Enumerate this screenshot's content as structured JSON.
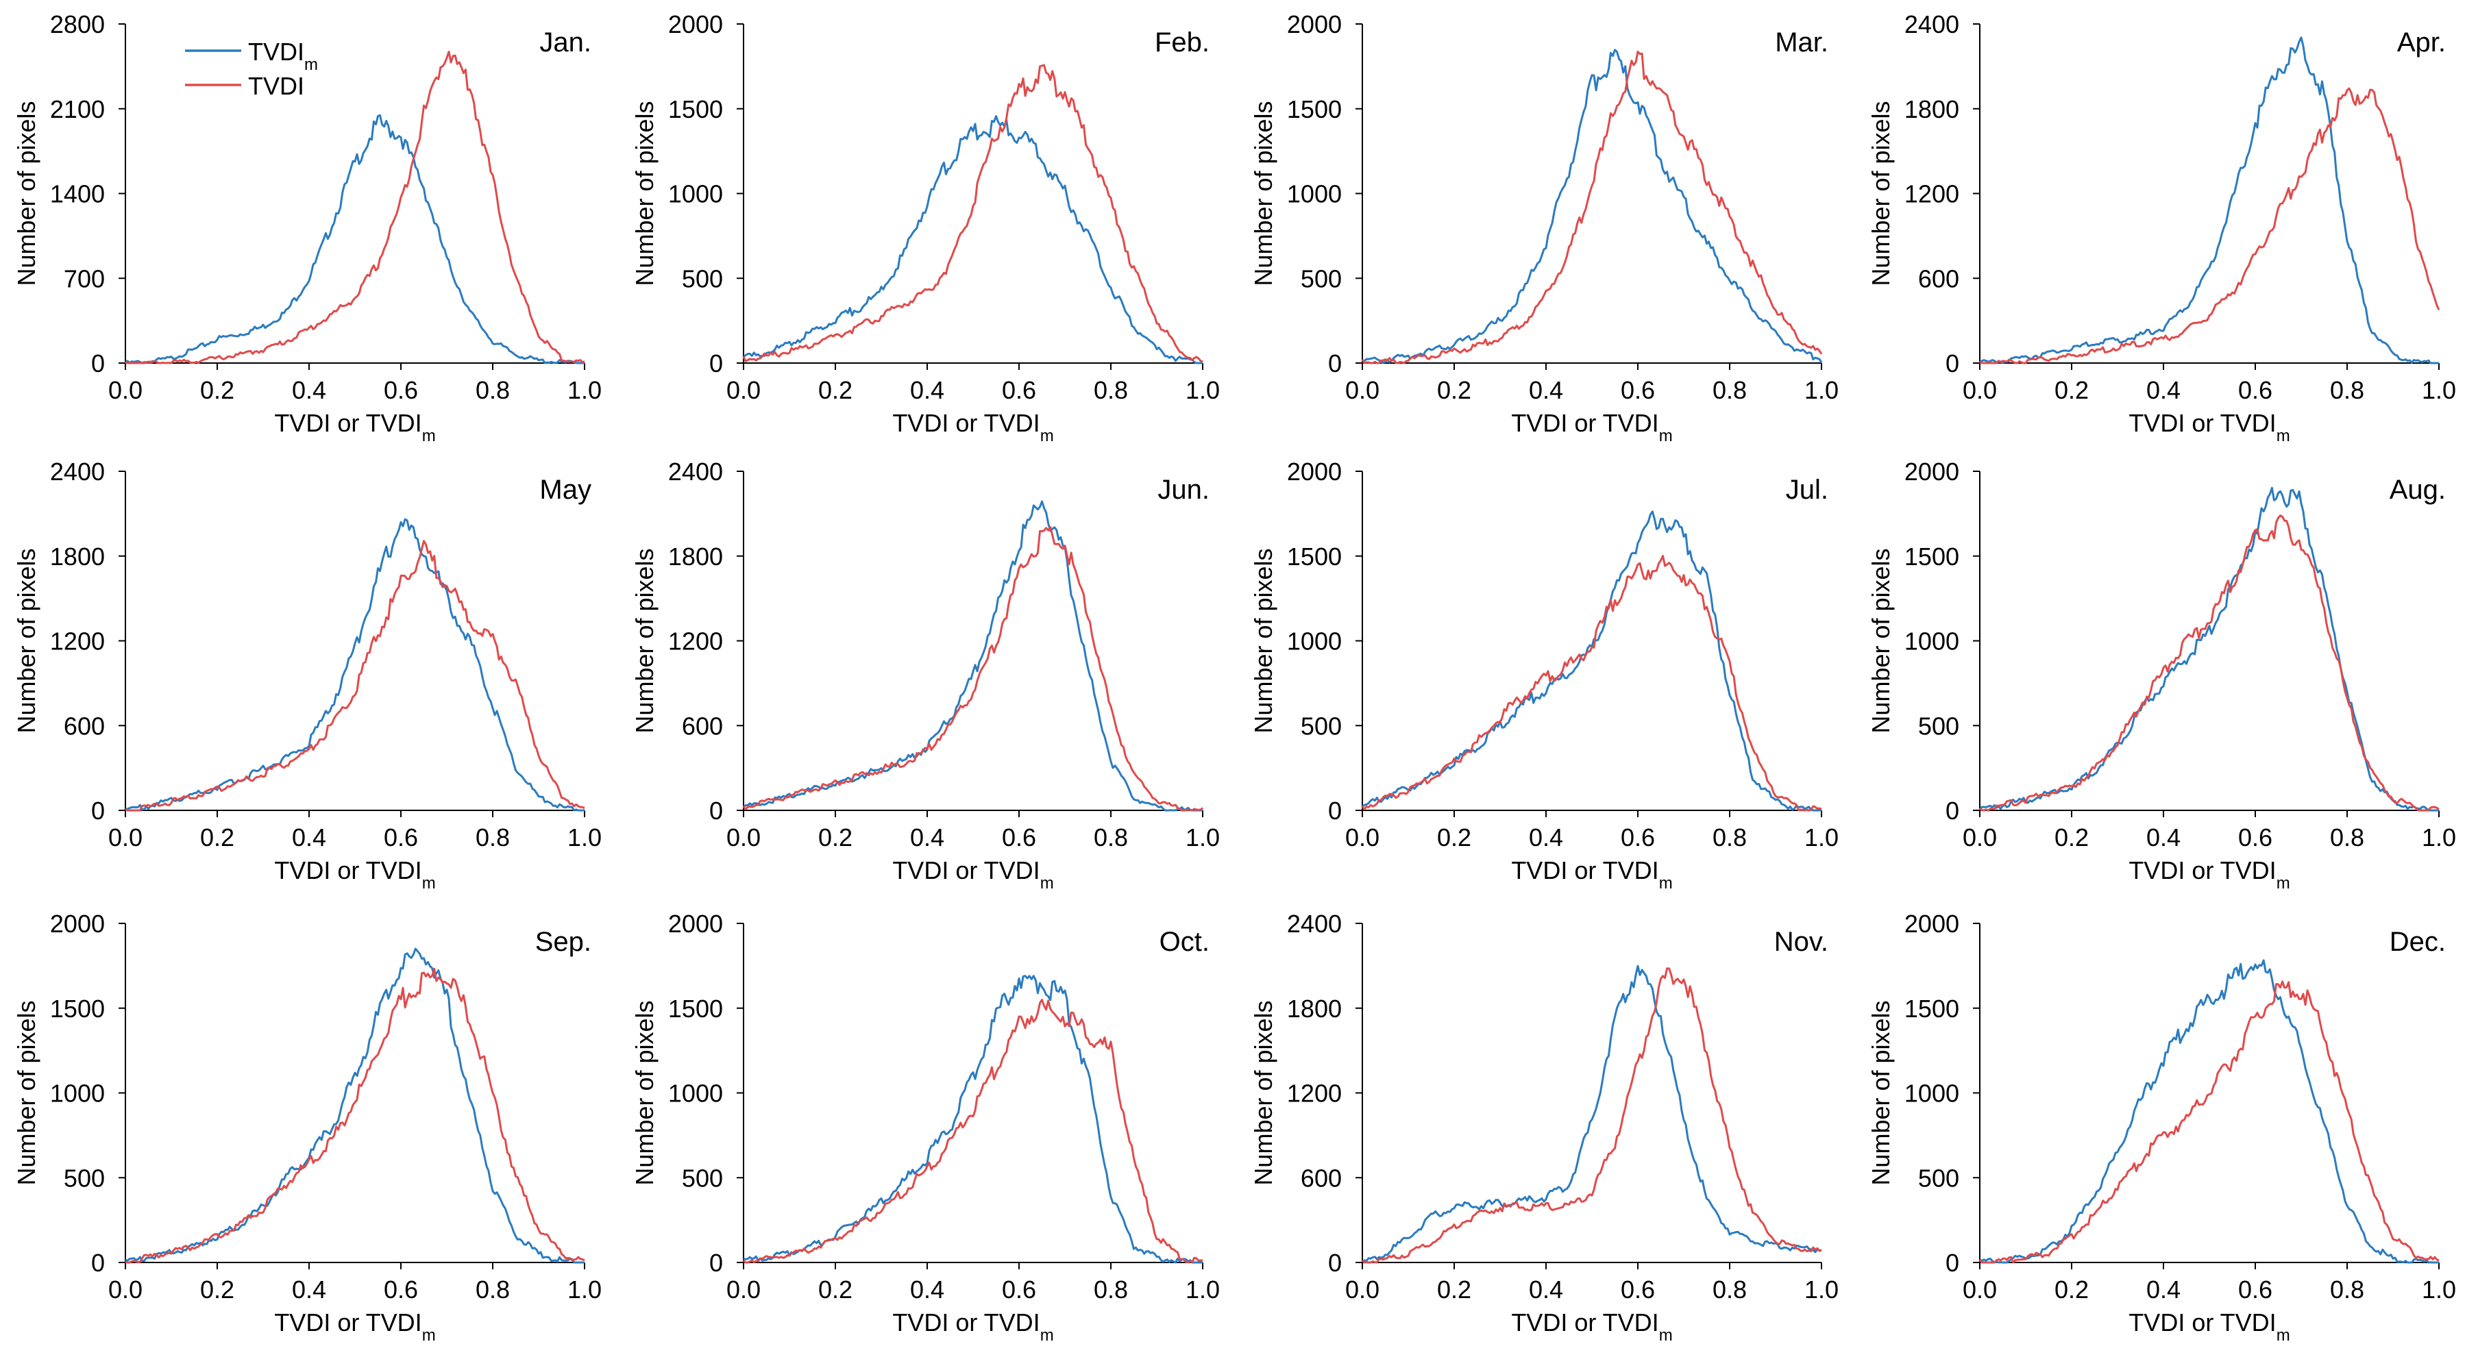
{
  "figure": {
    "legend": {
      "entries": [
        {
          "label": "TVDI",
          "subscript": "m",
          "color": "#2b7cc0"
        },
        {
          "label": "TVDI",
          "subscript": "",
          "color": "#e04b4b"
        }
      ],
      "placement": "top-left of first panel"
    },
    "common": {
      "xlabel": "TVDI or TVDI",
      "xlabel_subscript": "m",
      "ylabel": "Number of pixels",
      "xlim": [
        0,
        1
      ],
      "x_ticks": [
        "0.0",
        "0.2",
        "0.4",
        "0.6",
        "0.8",
        "1.0"
      ],
      "grid": false
    }
  },
  "chart_data": [
    {
      "type": "line",
      "title": "Jan.",
      "xlabel": "TVDI or TVDIm",
      "ylabel": "Number of pixels",
      "ylim": [
        0,
        2800
      ],
      "y_ticks": [
        "0",
        "700",
        "1400",
        "2100",
        "2800"
      ],
      "x": [
        0.0,
        0.05,
        0.1,
        0.15,
        0.2,
        0.25,
        0.3,
        0.35,
        0.4,
        0.45,
        0.5,
        0.55,
        0.6,
        0.65,
        0.7,
        0.75,
        0.8,
        0.85,
        0.9,
        0.95,
        1.0
      ],
      "series": [
        {
          "name": "TVDIm",
          "values": [
            0,
            10,
            40,
            110,
            200,
            240,
            300,
            420,
            700,
            1150,
            1650,
            1980,
            1880,
            1450,
            850,
            420,
            180,
            70,
            20,
            5,
            0
          ]
        },
        {
          "name": "TVDI",
          "values": [
            0,
            0,
            5,
            15,
            40,
            70,
            110,
            180,
            280,
            400,
            540,
            820,
            1320,
            2050,
            2600,
            2300,
            1500,
            700,
            230,
            40,
            0
          ]
        }
      ]
    },
    {
      "type": "line",
      "title": "Feb.",
      "xlabel": "TVDI or TVDIm",
      "ylabel": "Number of pixels",
      "ylim": [
        0,
        2000
      ],
      "y_ticks": [
        "0",
        "500",
        "1000",
        "1500",
        "2000"
      ],
      "x": [
        0.0,
        0.05,
        0.1,
        0.15,
        0.2,
        0.25,
        0.3,
        0.35,
        0.4,
        0.45,
        0.5,
        0.55,
        0.6,
        0.65,
        0.7,
        0.75,
        0.8,
        0.85,
        0.9,
        0.95,
        1.0
      ],
      "series": [
        {
          "name": "TVDIm",
          "values": [
            30,
            60,
            110,
            180,
            260,
            320,
            420,
            650,
            950,
            1200,
            1350,
            1400,
            1350,
            1200,
            1000,
            750,
            450,
            220,
            80,
            20,
            0
          ]
        },
        {
          "name": "TVDI",
          "values": [
            20,
            40,
            70,
            110,
            160,
            210,
            280,
            350,
            420,
            580,
            950,
            1350,
            1600,
            1700,
            1600,
            1300,
            950,
            550,
            250,
            70,
            0
          ]
        }
      ]
    },
    {
      "type": "line",
      "title": "Mar.",
      "xlabel": "TVDI or TVDIm",
      "ylabel": "Number of pixels",
      "ylim": [
        0,
        2000
      ],
      "y_ticks": [
        "0",
        "500",
        "1000",
        "1500",
        "2000"
      ],
      "x": [
        0.0,
        0.05,
        0.1,
        0.15,
        0.2,
        0.25,
        0.3,
        0.35,
        0.4,
        0.45,
        0.5,
        0.55,
        0.6,
        0.65,
        0.7,
        0.75,
        0.8,
        0.85,
        0.9,
        0.95,
        1.0
      ],
      "series": [
        {
          "name": "TVDIm",
          "values": [
            10,
            20,
            40,
            70,
            110,
            170,
            250,
            420,
            700,
            1150,
            1650,
            1800,
            1550,
            1200,
            950,
            700,
            500,
            330,
            170,
            70,
            20
          ]
        },
        {
          "name": "TVDI",
          "values": [
            5,
            10,
            20,
            40,
            70,
            100,
            150,
            230,
            400,
            650,
            1050,
            1500,
            1800,
            1600,
            1350,
            1100,
            850,
            580,
            320,
            140,
            50
          ]
        }
      ]
    },
    {
      "type": "line",
      "title": "Apr.",
      "xlabel": "TVDI or TVDIm",
      "ylabel": "Number of pixels",
      "ylim": [
        0,
        2400
      ],
      "y_ticks": [
        "0",
        "600",
        "1200",
        "1800",
        "2400"
      ],
      "x": [
        0.0,
        0.05,
        0.1,
        0.15,
        0.2,
        0.25,
        0.3,
        0.35,
        0.4,
        0.45,
        0.5,
        0.55,
        0.6,
        0.65,
        0.7,
        0.75,
        0.8,
        0.85,
        0.9,
        0.95,
        1.0
      ],
      "series": [
        {
          "name": "TVDIm",
          "values": [
            0,
            20,
            40,
            70,
            100,
            140,
            160,
            200,
            250,
            400,
            650,
            1150,
            1700,
            2100,
            2230,
            1900,
            900,
            250,
            60,
            10,
            0
          ]
        },
        {
          "name": "TVDI",
          "values": [
            0,
            5,
            15,
            30,
            50,
            80,
            110,
            140,
            170,
            230,
            340,
            500,
            750,
            1050,
            1350,
            1650,
            1900,
            1900,
            1600,
            900,
            350
          ]
        }
      ]
    },
    {
      "type": "line",
      "title": "May",
      "xlabel": "TVDI or TVDIm",
      "ylabel": "Number of pixels",
      "ylim": [
        0,
        2400
      ],
      "y_ticks": [
        "0",
        "600",
        "1200",
        "1800",
        "2400"
      ],
      "x": [
        0.0,
        0.05,
        0.1,
        0.15,
        0.2,
        0.25,
        0.3,
        0.35,
        0.4,
        0.45,
        0.5,
        0.55,
        0.6,
        0.65,
        0.7,
        0.75,
        0.8,
        0.85,
        0.9,
        0.95,
        1.0
      ],
      "series": [
        {
          "name": "TVDIm",
          "values": [
            0,
            30,
            70,
            110,
            160,
            220,
            290,
            370,
            480,
            750,
            1150,
            1650,
            2050,
            1850,
            1500,
            1200,
            750,
            300,
            90,
            20,
            0
          ]
        },
        {
          "name": "TVDI",
          "values": [
            0,
            20,
            60,
            100,
            150,
            200,
            260,
            330,
            420,
            600,
            850,
            1250,
            1600,
            1850,
            1600,
            1350,
            1200,
            900,
            400,
            100,
            0
          ]
        }
      ]
    },
    {
      "type": "line",
      "title": "Jun.",
      "xlabel": "TVDI or TVDIm",
      "ylabel": "Number of pixels",
      "ylim": [
        0,
        2400
      ],
      "y_ticks": [
        "0",
        "600",
        "1200",
        "1800",
        "2400"
      ],
      "x": [
        0.0,
        0.05,
        0.1,
        0.15,
        0.2,
        0.25,
        0.3,
        0.35,
        0.4,
        0.45,
        0.5,
        0.55,
        0.6,
        0.65,
        0.7,
        0.75,
        0.8,
        0.85,
        0.9,
        0.95,
        1.0
      ],
      "series": [
        {
          "name": "TVDIm",
          "values": [
            20,
            60,
            100,
            150,
            190,
            240,
            290,
            350,
            450,
            650,
            950,
            1400,
            1900,
            2200,
            1800,
            1000,
            350,
            90,
            20,
            5,
            0
          ]
        },
        {
          "name": "TVDI",
          "values": [
            20,
            60,
            100,
            150,
            190,
            240,
            290,
            340,
            430,
            600,
            850,
            1200,
            1650,
            1950,
            1900,
            1400,
            700,
            250,
            70,
            10,
            0
          ]
        }
      ]
    },
    {
      "type": "line",
      "title": "Jul.",
      "xlabel": "TVDI or TVDIm",
      "ylabel": "Number of pixels",
      "ylim": [
        0,
        2000
      ],
      "y_ticks": [
        "0",
        "500",
        "1000",
        "1500",
        "2000"
      ],
      "x": [
        0.0,
        0.05,
        0.1,
        0.15,
        0.2,
        0.25,
        0.3,
        0.35,
        0.4,
        0.45,
        0.5,
        0.55,
        0.6,
        0.65,
        0.7,
        0.75,
        0.8,
        0.85,
        0.9,
        0.95,
        1.0
      ],
      "series": [
        {
          "name": "TVDIm",
          "values": [
            20,
            80,
            130,
            200,
            280,
            380,
            500,
            620,
            720,
            800,
            950,
            1300,
            1600,
            1750,
            1600,
            1350,
            700,
            200,
            50,
            10,
            0
          ]
        },
        {
          "name": "TVDI",
          "values": [
            20,
            70,
            120,
            190,
            280,
            400,
            550,
            680,
            780,
            850,
            970,
            1250,
            1400,
            1450,
            1400,
            1200,
            850,
            350,
            100,
            20,
            0
          ]
        }
      ]
    },
    {
      "type": "line",
      "title": "Aug.",
      "xlabel": "TVDI or TVDIm",
      "ylabel": "Number of pixels",
      "ylim": [
        0,
        2000
      ],
      "y_ticks": [
        "0",
        "500",
        "1000",
        "1500",
        "2000"
      ],
      "x": [
        0.0,
        0.05,
        0.1,
        0.15,
        0.2,
        0.25,
        0.3,
        0.35,
        0.4,
        0.45,
        0.5,
        0.55,
        0.6,
        0.65,
        0.7,
        0.75,
        0.8,
        0.85,
        0.9,
        0.95,
        1.0
      ],
      "series": [
        {
          "name": "TVDIm",
          "values": [
            0,
            30,
            60,
            100,
            140,
            230,
            380,
            580,
            750,
            900,
            1050,
            1300,
            1650,
            1900,
            1800,
            1300,
            700,
            200,
            50,
            10,
            0
          ]
        },
        {
          "name": "TVDI",
          "values": [
            0,
            30,
            60,
            100,
            140,
            240,
            400,
            620,
            820,
            980,
            1120,
            1350,
            1600,
            1680,
            1600,
            1200,
            650,
            230,
            70,
            15,
            0
          ]
        }
      ]
    },
    {
      "type": "line",
      "title": "Sep.",
      "xlabel": "TVDI or TVDIm",
      "ylabel": "Number of pixels",
      "ylim": [
        0,
        2000
      ],
      "y_ticks": [
        "0",
        "500",
        "1000",
        "1500",
        "2000"
      ],
      "x": [
        0.0,
        0.05,
        0.1,
        0.15,
        0.2,
        0.25,
        0.3,
        0.35,
        0.4,
        0.45,
        0.5,
        0.55,
        0.6,
        0.65,
        0.7,
        0.75,
        0.8,
        0.85,
        0.9,
        0.95,
        1.0
      ],
      "series": [
        {
          "name": "TVDIm",
          "values": [
            0,
            30,
            60,
            100,
            150,
            220,
            330,
            500,
            620,
            800,
            1100,
            1450,
            1750,
            1850,
            1550,
            950,
            450,
            160,
            50,
            10,
            0
          ]
        },
        {
          "name": "TVDI",
          "values": [
            0,
            30,
            60,
            100,
            150,
            220,
            320,
            470,
            580,
            720,
            950,
            1250,
            1550,
            1650,
            1700,
            1450,
            1000,
            500,
            200,
            50,
            0
          ]
        }
      ]
    },
    {
      "type": "line",
      "title": "Oct.",
      "xlabel": "TVDI or TVDIm",
      "ylabel": "Number of pixels",
      "ylim": [
        0,
        2000
      ],
      "y_ticks": [
        "0",
        "500",
        "1000",
        "1500",
        "2000"
      ],
      "x": [
        0.0,
        0.05,
        0.1,
        0.15,
        0.2,
        0.25,
        0.3,
        0.35,
        0.4,
        0.45,
        0.5,
        0.55,
        0.6,
        0.65,
        0.7,
        0.75,
        0.8,
        0.85,
        0.9,
        0.95,
        1.0
      ],
      "series": [
        {
          "name": "TVDIm",
          "values": [
            10,
            30,
            60,
            100,
            160,
            250,
            350,
            480,
            620,
            800,
            1100,
            1450,
            1680,
            1650,
            1550,
            1100,
            400,
            100,
            30,
            5,
            0
          ]
        },
        {
          "name": "TVDI",
          "values": [
            10,
            20,
            50,
            80,
            140,
            220,
            310,
            420,
            550,
            700,
            900,
            1150,
            1400,
            1500,
            1450,
            1350,
            1250,
            600,
            150,
            30,
            0
          ]
        }
      ]
    },
    {
      "type": "line",
      "title": "Nov.",
      "xlabel": "TVDI or TVDIm",
      "ylabel": "Number of pixels",
      "ylim": [
        0,
        2400
      ],
      "y_ticks": [
        "0",
        "600",
        "1200",
        "1800",
        "2400"
      ],
      "x": [
        0.0,
        0.05,
        0.1,
        0.15,
        0.2,
        0.25,
        0.3,
        0.35,
        0.4,
        0.45,
        0.5,
        0.55,
        0.6,
        0.65,
        0.7,
        0.75,
        0.8,
        0.85,
        0.9,
        0.95,
        1.0
      ],
      "series": [
        {
          "name": "TVDIm",
          "values": [
            0,
            60,
            180,
            320,
            400,
            400,
            420,
            430,
            460,
            550,
            1000,
            1700,
            2100,
            1750,
            1000,
            450,
            220,
            150,
            120,
            100,
            90
          ]
        },
        {
          "name": "TVDI",
          "values": [
            0,
            20,
            60,
            140,
            250,
            340,
            390,
            400,
            390,
            400,
            500,
            850,
            1400,
            2000,
            2050,
            1500,
            800,
            350,
            150,
            100,
            80
          ]
        }
      ]
    },
    {
      "type": "line",
      "title": "Dec.",
      "xlabel": "TVDI or TVDIm",
      "ylabel": "Number of pixels",
      "ylim": [
        0,
        2000
      ],
      "y_ticks": [
        "0",
        "500",
        "1000",
        "1500",
        "2000"
      ],
      "x": [
        0.0,
        0.05,
        0.1,
        0.15,
        0.2,
        0.25,
        0.3,
        0.35,
        0.4,
        0.45,
        0.5,
        0.55,
        0.6,
        0.65,
        0.7,
        0.75,
        0.8,
        0.85,
        0.9,
        0.95,
        1.0
      ],
      "series": [
        {
          "name": "TVDIm",
          "values": [
            0,
            10,
            30,
            80,
            200,
            400,
            650,
            950,
            1200,
            1400,
            1550,
            1650,
            1780,
            1600,
            1250,
            800,
            350,
            100,
            20,
            5,
            0
          ]
        },
        {
          "name": "TVDI",
          "values": [
            0,
            10,
            20,
            60,
            150,
            280,
            450,
            600,
            750,
            850,
            1000,
            1200,
            1450,
            1600,
            1620,
            1350,
            900,
            450,
            150,
            40,
            10
          ]
        }
      ]
    }
  ]
}
